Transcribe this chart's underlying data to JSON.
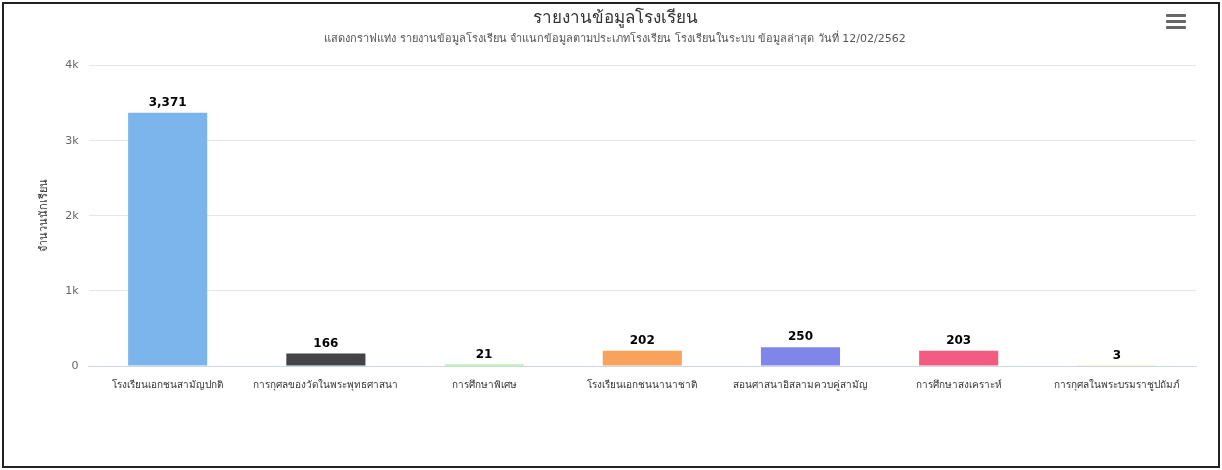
{
  "chart_data": {
    "type": "bar",
    "title": "รายงานข้อมูลโรงเรียน",
    "subtitle": "แสดงกราฟแท่ง รายงานข้อมูลโรงเรียน จำแนกข้อมูลตามประเภทโรงเรียน โรงเรียนในระบบ ข้อมูลล่าสุด วันที่ 12/02/2562",
    "ylabel": "จำนวนนักเรียน",
    "categories": [
      "โรงเรียนเอกชนสามัญปกติ",
      "การกุศลของวัดในพระพุทธศาสนา",
      "การศึกษาพิเศษ",
      "โรงเรียนเอกชนนานาชาติ",
      "สอนศาสนาอิสลามควบคู่สามัญ",
      "การศึกษาสงเคราะห์",
      "การกุศลในพระบรมราชูปถัมภ์"
    ],
    "values": [
      3371,
      166,
      21,
      202,
      250,
      203,
      3
    ],
    "colors": [
      "#7cb5ec",
      "#434348",
      "#90ed7d",
      "#f7a35c",
      "#8085e9",
      "#f15c80",
      "#e4d354"
    ],
    "value_labels": [
      "3,371",
      "166",
      "21",
      "202",
      "250",
      "203",
      "3"
    ],
    "ylim": [
      0,
      4000
    ],
    "yticks": [
      0,
      {
        "value": 1000,
        "label": "1k"
      },
      {
        "value": 2000,
        "label": "2k"
      },
      {
        "value": 3000,
        "label": "3k"
      },
      {
        "value": 4000,
        "label": "4k"
      }
    ],
    "grid": "y",
    "legend": false
  }
}
